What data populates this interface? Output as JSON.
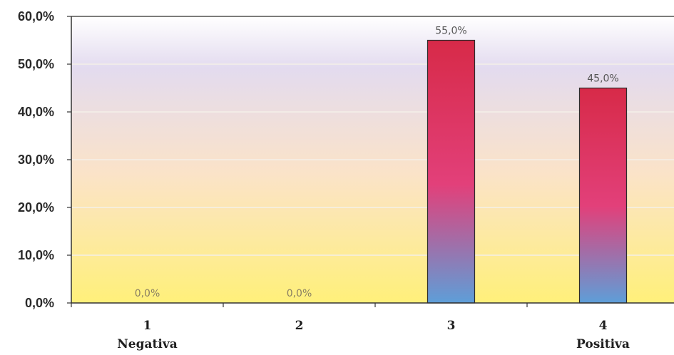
{
  "chart_data": {
    "type": "bar",
    "title": "",
    "xlabel": "",
    "ylabel": "",
    "categories": [
      "1",
      "2",
      "3",
      "4"
    ],
    "category_sublabels": [
      "Negativa",
      "",
      "",
      "Positiva"
    ],
    "values": [
      0.0,
      0.0,
      55.0,
      45.0
    ],
    "data_labels": [
      "0,0%",
      "0,0%",
      "55,0%",
      "45,0%"
    ],
    "ylim": [
      0,
      60
    ],
    "yticks": [
      0,
      10,
      20,
      30,
      40,
      50,
      60
    ],
    "ytick_labels": [
      "0,0%",
      "10,0%",
      "20,0%",
      "30,0%",
      "40,0%",
      "50,0%",
      "60,0%"
    ],
    "grid": true,
    "legend": "none",
    "colors": {
      "bar_top": "#d72a48",
      "bar_mid": "#e2407a",
      "bar_bottom": "#5e9ed8",
      "bg_top": "#ffffff",
      "bg_lavender": "#e3dbef",
      "bg_peach": "#fbe3c8",
      "bg_yellow": "#fff07a",
      "axis": "#333333",
      "grid": "#f4f0e8"
    }
  }
}
